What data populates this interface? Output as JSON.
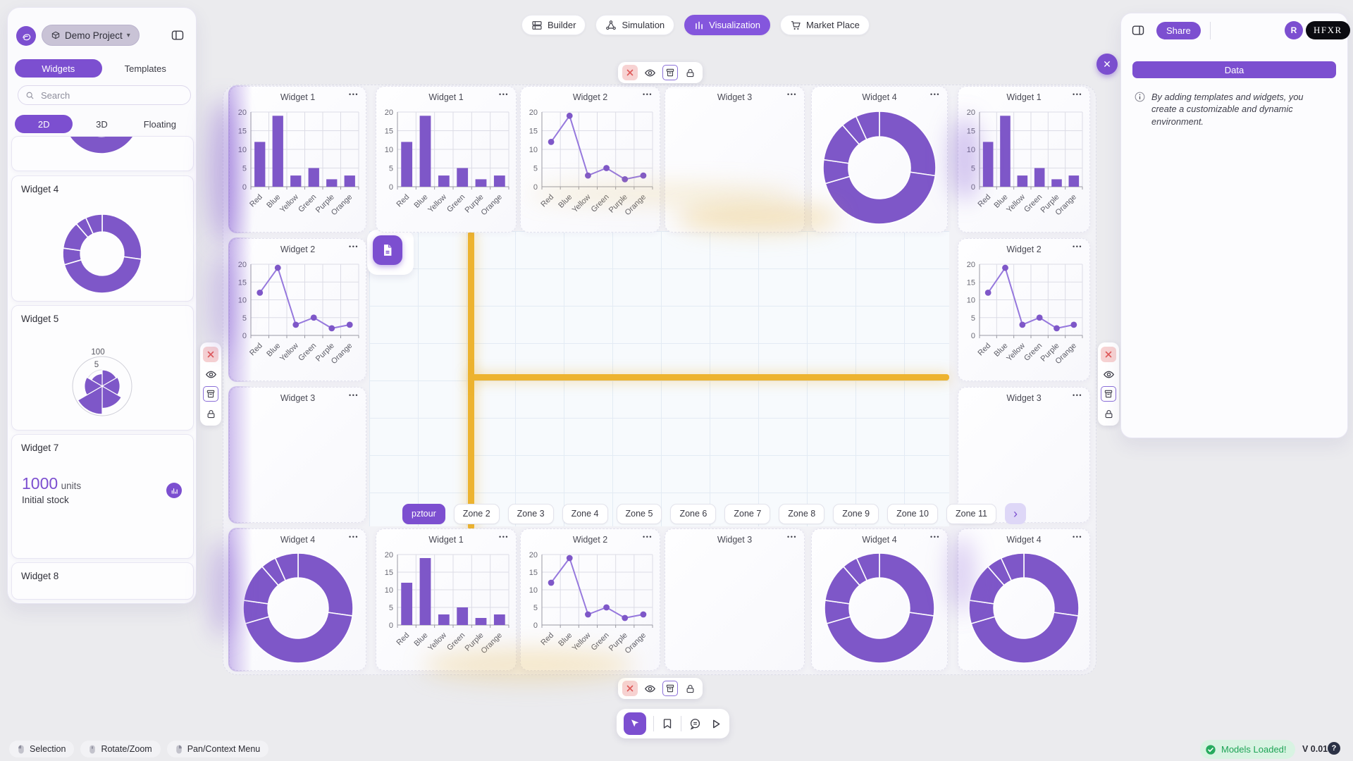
{
  "colors": {
    "accent": "#7c4fd0",
    "chart_purple": "#7e57c8",
    "crosshair_yellow": "#edb32f",
    "success_green": "#1ea356",
    "danger_red": "#df5858"
  },
  "glyphs": {
    "menu_dots": "•••",
    "caret_down": "▾",
    "close_x": "✕",
    "chevron_right": "›"
  },
  "sidebar": {
    "project": {
      "label": "Demo Project"
    },
    "tabs": {
      "widgets": "Widgets",
      "templates": "Templates"
    },
    "search": {
      "placeholder": "Search"
    },
    "modes": {
      "d2": "2D",
      "d3": "3D",
      "floating": "Floating"
    },
    "cards": [
      {
        "title": "Widget 4",
        "type": "donut"
      },
      {
        "title": "Widget 5",
        "type": "polar"
      },
      {
        "title": "Widget 7",
        "type": "kpi",
        "kpi_value": "1000",
        "kpi_unit": "units",
        "kpi_label": "Initial stock"
      },
      {
        "title": "Widget 8",
        "type": "empty"
      }
    ]
  },
  "topnav": {
    "builder": "Builder",
    "simulation": "Simulation",
    "visualization": "Visualization",
    "marketplace": "Market Place"
  },
  "right_panel": {
    "share": "Share",
    "avatar_initial": "R",
    "brand": "HFXR",
    "data_button": "Data",
    "info_text": "By adding templates and widgets, you create a customizable and dynamic environment."
  },
  "canvas": {
    "widgets": {
      "w1": "Widget 1",
      "w2": "Widget 2",
      "w3": "Widget 3",
      "w4": "Widget 4"
    },
    "zones": [
      "pztour",
      "Zone 2",
      "Zone 3",
      "Zone 4",
      "Zone 5",
      "Zone 6",
      "Zone 7",
      "Zone 8",
      "Zone 9",
      "Zone 10",
      "Zone 11"
    ],
    "active_zone": "pztour"
  },
  "statusbar": {
    "selection": "Selection",
    "rotate_zoom": "Rotate/Zoom",
    "pan_context": "Pan/Context Menu",
    "models_loaded": "Models Loaded!",
    "version": "V 0.01",
    "help": "?"
  },
  "chart_data": [
    {
      "id": "bar_widget1",
      "type": "bar",
      "title": "Widget 1",
      "categories": [
        "Red",
        "Blue",
        "Yellow",
        "Green",
        "Purple",
        "Orange"
      ],
      "values": [
        12,
        19,
        3,
        5,
        2,
        3
      ],
      "ylim": [
        0,
        20
      ],
      "yticks": [
        0,
        5,
        10,
        15,
        20
      ],
      "color": "#7e57c8",
      "grid": true
    },
    {
      "id": "line_widget2",
      "type": "line",
      "title": "Widget 2",
      "categories": [
        "Red",
        "Blue",
        "Yellow",
        "Green",
        "Purple",
        "Orange"
      ],
      "values": [
        12,
        19,
        3,
        5,
        2,
        3
      ],
      "ylim": [
        0,
        20
      ],
      "yticks": [
        0,
        5,
        10,
        15,
        20
      ],
      "color": "#7e57c8",
      "line_color": "#9678dd",
      "grid": true
    },
    {
      "id": "donut_widget4",
      "type": "donut",
      "title": "Widget 4",
      "categories": [
        "Red",
        "Blue",
        "Yellow",
        "Green",
        "Purple",
        "Orange"
      ],
      "values": [
        12,
        19,
        3,
        5,
        2,
        3
      ],
      "color": "#7e57c8"
    },
    {
      "id": "polar_widget5",
      "type": "polar",
      "title": "Widget 5",
      "values": [
        55,
        60,
        75,
        95,
        60,
        42
      ],
      "radial_ticks": [
        "100",
        "5"
      ],
      "rmax": 100,
      "color": "#7e57c8"
    },
    {
      "id": "kpi_widget7",
      "type": "kpi",
      "title": "Widget 7",
      "value": "1000",
      "unit": "units",
      "label": "Initial stock"
    }
  ]
}
